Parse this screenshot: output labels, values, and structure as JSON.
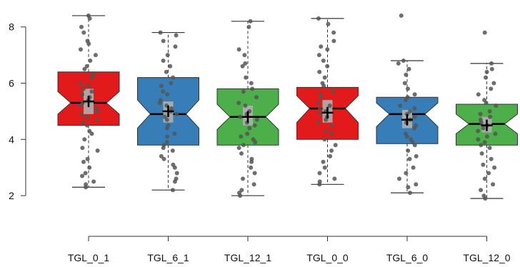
{
  "chart_data": {
    "type": "boxplot",
    "title": "",
    "xlabel": "",
    "ylabel": "",
    "ylim": [
      1.9,
      8.5
    ],
    "yticks": [
      2,
      4,
      6,
      8
    ],
    "notched": true,
    "grid": false,
    "legend": "none",
    "categories": [
      "TGL_0_1",
      "TGL_6_1",
      "TGL_12_1",
      "TGL_0_0",
      "TGL_6_0",
      "TGL_12_0"
    ],
    "colors": [
      "#e31a1c",
      "#377eb8",
      "#4daf4a",
      "#e31a1c",
      "#377eb8",
      "#4daf4a"
    ],
    "mean_marker_color": "#000000",
    "ci_band_color": "#b0b0b0",
    "points_color": "#555555",
    "groups": [
      {
        "name": "TGL_0_1",
        "whisker_low": 2.3,
        "q1": 4.5,
        "median": 5.3,
        "q3": 6.4,
        "whisker_high": 8.4,
        "notch_low": 4.9,
        "notch_high": 5.7,
        "mean": 5.35,
        "ci": [
          4.9,
          5.8
        ],
        "points": [
          8.4,
          8.3,
          8.0,
          7.8,
          7.5,
          7.4,
          7.2,
          7.0,
          6.8,
          6.6,
          6.5,
          6.3,
          6.2,
          6.0,
          5.9,
          5.8,
          5.7,
          5.6,
          5.5,
          5.4,
          5.3,
          5.2,
          5.1,
          5.0,
          4.9,
          4.8,
          4.7,
          4.6,
          4.5,
          4.3,
          4.2,
          4.0,
          3.7,
          3.6,
          3.3,
          3.2,
          3.0,
          2.8,
          2.7,
          2.5,
          2.4,
          2.3
        ]
      },
      {
        "name": "TGL_6_1",
        "whisker_low": 2.2,
        "q1": 3.8,
        "median": 4.9,
        "q3": 6.2,
        "whisker_high": 7.8,
        "notch_low": 4.4,
        "notch_high": 5.4,
        "mean": 5.0,
        "ci": [
          4.6,
          5.35
        ],
        "points": [
          7.8,
          7.7,
          7.5,
          7.3,
          7.0,
          6.8,
          6.6,
          6.4,
          6.2,
          6.0,
          5.9,
          5.7,
          5.6,
          5.4,
          5.3,
          5.2,
          5.1,
          5.0,
          4.9,
          4.8,
          4.7,
          4.5,
          4.4,
          4.2,
          4.1,
          3.9,
          3.8,
          3.7,
          3.6,
          3.4,
          3.3,
          3.1,
          3.0,
          2.8,
          2.6,
          2.5,
          2.2
        ]
      },
      {
        "name": "TGL_12_1",
        "whisker_low": 2.0,
        "q1": 3.8,
        "median": 4.8,
        "q3": 5.8,
        "whisker_high": 8.2,
        "notch_low": 4.35,
        "notch_high": 5.25,
        "mean": 4.8,
        "ci": [
          4.5,
          5.2
        ],
        "points": [
          8.2,
          8.0,
          7.2,
          7.0,
          6.7,
          6.6,
          6.2,
          6.0,
          5.8,
          5.7,
          5.5,
          5.3,
          5.2,
          5.0,
          4.9,
          4.8,
          4.7,
          4.6,
          4.5,
          4.4,
          4.2,
          4.1,
          4.0,
          3.9,
          3.8,
          3.7,
          3.5,
          3.3,
          3.2,
          3.0,
          2.8,
          2.6,
          2.4,
          2.2,
          2.1,
          2.0
        ]
      },
      {
        "name": "TGL_0_0",
        "whisker_low": 2.4,
        "q1": 4.0,
        "median": 5.1,
        "q3": 5.85,
        "whisker_high": 8.3,
        "notch_low": 4.6,
        "notch_high": 5.55,
        "mean": 4.95,
        "ci": [
          4.6,
          5.4
        ],
        "points": [
          8.3,
          8.1,
          7.8,
          7.5,
          7.3,
          7.2,
          7.0,
          6.8,
          6.6,
          6.4,
          6.2,
          6.0,
          5.9,
          5.7,
          5.6,
          5.5,
          5.3,
          5.2,
          5.1,
          5.0,
          4.9,
          4.8,
          4.7,
          4.6,
          4.5,
          4.3,
          4.2,
          4.0,
          3.8,
          3.6,
          3.4,
          3.2,
          3.0,
          2.8,
          2.6,
          2.5,
          2.4
        ]
      },
      {
        "name": "TGL_6_0",
        "whisker_low": 2.1,
        "q1": 3.85,
        "median": 4.9,
        "q3": 5.5,
        "whisker_high": 6.8,
        "notch_low": 4.45,
        "notch_high": 5.3,
        "mean": 4.7,
        "ci": [
          4.4,
          5.05
        ],
        "points": [
          8.4,
          6.8,
          6.7,
          6.5,
          6.3,
          6.0,
          5.8,
          5.6,
          5.5,
          5.4,
          5.2,
          5.1,
          5.0,
          4.9,
          4.8,
          4.7,
          4.6,
          4.5,
          4.4,
          4.2,
          4.1,
          4.0,
          3.9,
          3.8,
          3.6,
          3.4,
          3.3,
          3.0,
          2.8,
          2.6,
          2.4,
          2.3,
          2.1
        ]
      },
      {
        "name": "TGL_12_0",
        "whisker_low": 1.9,
        "q1": 3.8,
        "median": 4.55,
        "q3": 5.25,
        "whisker_high": 6.7,
        "notch_low": 4.2,
        "notch_high": 4.9,
        "mean": 4.5,
        "ci": [
          4.25,
          4.8
        ],
        "points": [
          7.8,
          6.7,
          6.5,
          6.4,
          6.2,
          6.0,
          5.8,
          5.6,
          5.4,
          5.3,
          5.2,
          5.0,
          4.9,
          4.8,
          4.7,
          4.6,
          4.5,
          4.4,
          4.3,
          4.2,
          4.1,
          4.0,
          3.9,
          3.8,
          3.7,
          3.5,
          3.3,
          3.1,
          3.0,
          2.8,
          2.6,
          2.4,
          2.2,
          2.0,
          1.9
        ]
      }
    ]
  }
}
